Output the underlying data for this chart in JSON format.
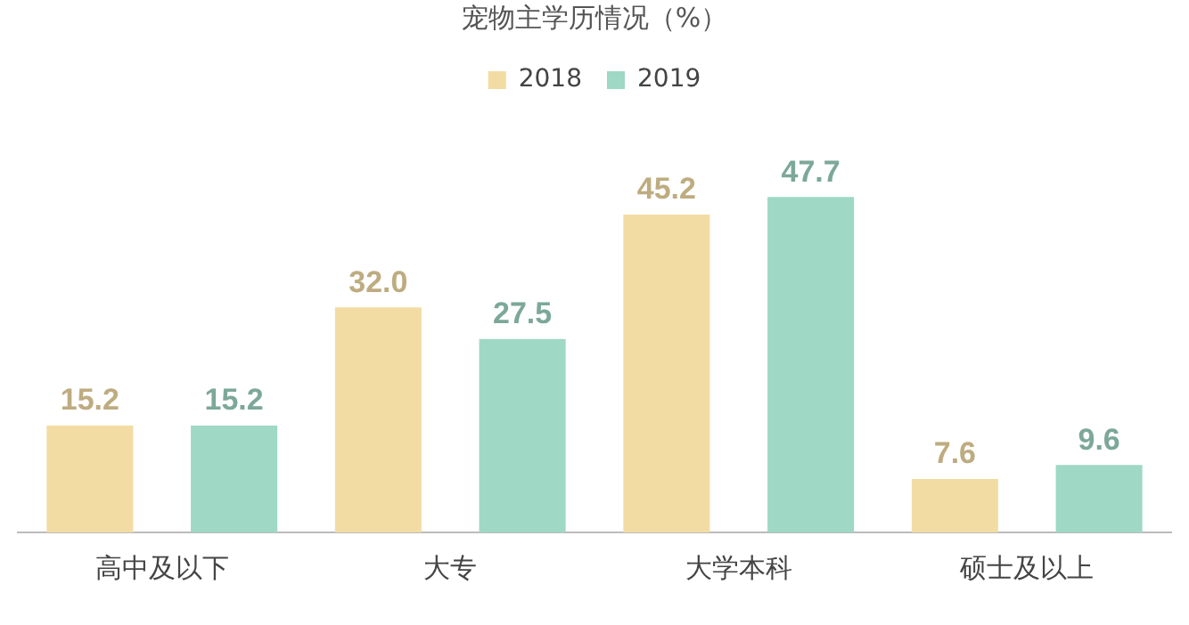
{
  "chart_data": {
    "type": "bar",
    "title": "宠物主学历情况（%）",
    "categories": [
      "高中及以下",
      "大专",
      "大学本科",
      "硕士及以上"
    ],
    "series": [
      {
        "name": "2018",
        "color": "#f3dca4",
        "values": [
          15.2,
          32.0,
          45.2,
          7.6
        ],
        "value_labels": [
          "15.2",
          "32.0",
          "45.2",
          "7.6"
        ]
      },
      {
        "name": "2019",
        "color": "#9fd8c4",
        "values": [
          15.2,
          27.5,
          47.7,
          9.6
        ],
        "value_labels": [
          "15.2",
          "27.5",
          "47.7",
          "9.6"
        ]
      }
    ],
    "legend": "top",
    "grid": false
  }
}
